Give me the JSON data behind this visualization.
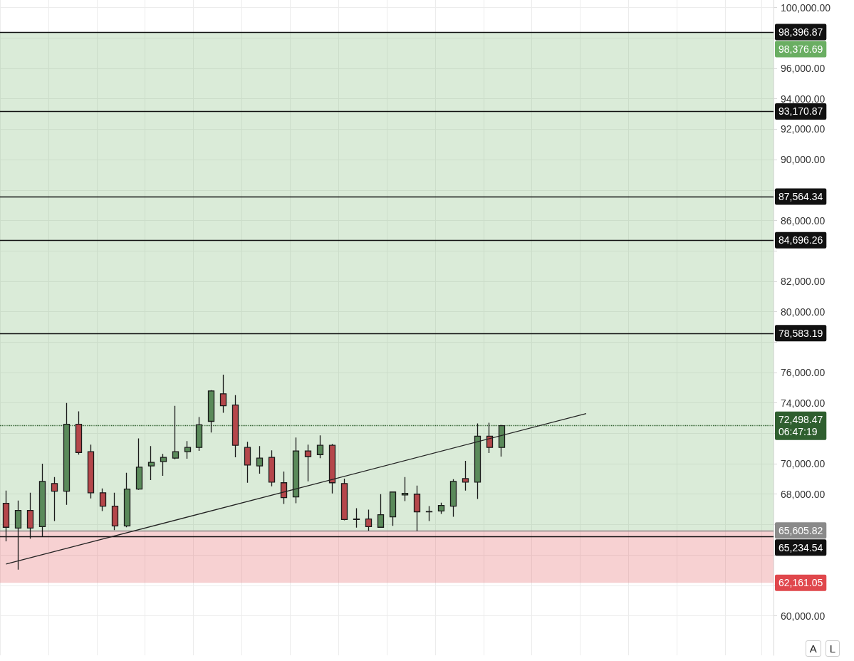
{
  "chart_data": {
    "type": "candlestick",
    "categories": [
      null,
      null,
      null,
      null,
      null,
      null,
      null,
      null,
      null,
      null,
      null,
      null,
      null,
      null,
      null,
      null,
      null,
      null,
      null,
      null,
      null,
      null,
      null,
      null,
      null,
      null,
      null,
      null,
      null,
      null,
      null,
      null,
      null,
      null,
      null,
      null,
      null,
      null,
      null,
      null,
      null,
      null,
      null,
      null,
      null,
      null,
      null,
      null,
      null,
      null,
      null,
      null,
      null,
      null,
      null,
      null,
      null,
      null,
      null,
      null,
      null,
      null,
      null,
      null
    ],
    "ohlc": [
      [
        67400,
        68230,
        64890,
        65820
      ],
      [
        65770,
        67580,
        63030,
        66930
      ],
      [
        66930,
        68090,
        65070,
        65770
      ],
      [
        65860,
        70000,
        65210,
        68840
      ],
      [
        68700,
        69120,
        66230,
        68190
      ],
      [
        68190,
        74000,
        67300,
        72600
      ],
      [
        72600,
        73440,
        70600,
        70740
      ],
      [
        70790,
        71260,
        67720,
        68090
      ],
      [
        68090,
        68370,
        66890,
        67210
      ],
      [
        67210,
        68090,
        65630,
        65910
      ],
      [
        65910,
        69400,
        65820,
        68330
      ],
      [
        68330,
        71670,
        68280,
        69770
      ],
      [
        69860,
        71160,
        68930,
        70090
      ],
      [
        70140,
        70650,
        69210,
        70420
      ],
      [
        70370,
        73810,
        70300,
        70790
      ],
      [
        70790,
        71490,
        70330,
        71070
      ],
      [
        71070,
        73070,
        70840,
        72560
      ],
      [
        72790,
        74840,
        72050,
        74790
      ],
      [
        74600,
        75860,
        73350,
        73810
      ],
      [
        73860,
        74510,
        70420,
        71210
      ],
      [
        71070,
        71440,
        68750,
        69910
      ],
      [
        69860,
        71160,
        69350,
        70370
      ],
      [
        70420,
        70880,
        68510,
        68790
      ],
      [
        68750,
        69490,
        67350,
        67770
      ],
      [
        67820,
        71720,
        67400,
        70840
      ],
      [
        70840,
        71260,
        68840,
        70470
      ],
      [
        70600,
        71860,
        70370,
        71210
      ],
      [
        71210,
        71300,
        68050,
        68750
      ],
      [
        68700,
        69020,
        66280,
        66330
      ],
      [
        66330,
        67070,
        65800,
        66370
      ],
      [
        66370,
        66980,
        65600,
        65860
      ],
      [
        65820,
        68000,
        65820,
        66650
      ],
      [
        66510,
        68180,
        65910,
        68140
      ],
      [
        67950,
        69120,
        67540,
        68050
      ],
      [
        68000,
        68560,
        65580,
        66840
      ],
      [
        66840,
        67210,
        66230,
        66860
      ],
      [
        66890,
        67440,
        66700,
        67260
      ],
      [
        67210,
        68980,
        66510,
        68840
      ],
      [
        69020,
        70190,
        68230,
        68790
      ],
      [
        68790,
        72650,
        67680,
        71810
      ],
      [
        71810,
        72700,
        70700,
        71070
      ],
      [
        71070,
        72550,
        70470,
        72498.47
      ],
      null,
      null,
      null,
      null,
      null,
      null,
      null,
      null,
      null,
      null,
      null,
      null,
      null,
      null,
      null,
      null,
      null,
      null,
      null,
      null,
      null,
      null
    ],
    "colors": [
      "#b5474b",
      "#5a8a5a",
      "#b5474b",
      "#5a8a5a",
      "#b5474b",
      "#5a8a5a",
      "#b5474b",
      "#b5474b",
      "#b5474b",
      "#b5474b",
      "#5a8a5a",
      "#5a8a5a",
      "#5a8a5a",
      "#5a8a5a",
      "#5a8a5a",
      "#5a8a5a",
      "#5a8a5a",
      "#5a8a5a",
      "#b5474b",
      "#b5474b",
      "#b5474b",
      "#5a8a5a",
      "#b5474b",
      "#b5474b",
      "#5a8a5a",
      "#b5474b",
      "#5a8a5a",
      "#b5474b",
      "#b5474b",
      "#5a8a5a",
      "#b5474b",
      "#5a8a5a",
      "#5a8a5a",
      "#5a8a5a",
      "#b5474b",
      "#5a8a5a",
      "#5a8a5a",
      "#5a8a5a",
      "#b5474b",
      "#5a8a5a",
      "#b5474b",
      "#5a8a5a",
      null,
      null,
      null,
      null,
      null,
      null,
      null,
      null,
      null,
      null,
      null,
      null,
      null,
      null,
      null,
      null,
      null,
      null,
      null,
      null,
      null,
      null
    ],
    "series": [
      {
        "type": "line",
        "color": "#222222",
        "values": [
          63400,
          null,
          null,
          null,
          null,
          null,
          null,
          null,
          null,
          null,
          null,
          null,
          null,
          null,
          null,
          null,
          null,
          null,
          null,
          null,
          null,
          null,
          null,
          null,
          null,
          null,
          null,
          null,
          null,
          null,
          null,
          null,
          null,
          null,
          null,
          null,
          null,
          null,
          null,
          null,
          null,
          null,
          null,
          null,
          null,
          null,
          null,
          null,
          73300,
          null,
          null,
          null,
          null,
          null,
          null,
          null,
          null,
          null,
          null,
          null,
          null,
          null,
          null,
          null
        ]
      }
    ],
    "ylim": [
      57400,
      100500
    ],
    "yticks": [
      {
        "value": 60000,
        "label": "60,000.00"
      },
      {
        "value": 62000,
        "label": null
      },
      {
        "value": 64000,
        "label": null
      },
      {
        "value": 66000,
        "label": null
      },
      {
        "value": 68000,
        "label": "68,000.00"
      },
      {
        "value": 70000,
        "label": "70,000.00"
      },
      {
        "value": 72000,
        "label": null
      },
      {
        "value": 74000,
        "label": "74,000.00"
      },
      {
        "value": 76000,
        "label": "76,000.00"
      },
      {
        "value": 78000,
        "label": null
      },
      {
        "value": 80000,
        "label": "80,000.00"
      },
      {
        "value": 82000,
        "label": "82,000.00"
      },
      {
        "value": 84000,
        "label": null
      },
      {
        "value": 86000,
        "label": "86,000.00"
      },
      {
        "value": 88000,
        "label": null
      },
      {
        "value": 90000,
        "label": "90,000.00"
      },
      {
        "value": 92000,
        "label": "92,000.00"
      },
      {
        "value": 94000,
        "label": "94,000.00"
      },
      {
        "value": 96000,
        "label": "96,000.00"
      },
      {
        "value": 98000,
        "label": null
      },
      {
        "value": 100000,
        "label": "100,000.00"
      }
    ],
    "ref_lines": [
      {
        "axis": "y",
        "value": 98396.87,
        "label": "98,396.87",
        "color": "#111111"
      },
      {
        "axis": "y",
        "value": 93170.87,
        "label": "93,170.87",
        "color": "#111111"
      },
      {
        "axis": "y",
        "value": 87564.34,
        "label": "87,564.34",
        "color": "#111111"
      },
      {
        "axis": "y",
        "value": 84696.26,
        "label": "84,696.26",
        "color": "#111111"
      },
      {
        "axis": "y",
        "value": 78583.19,
        "label": "78,583.19",
        "color": "#111111"
      },
      {
        "axis": "y",
        "value": 72498.47,
        "label": "72,498.47\n06:47:19",
        "color": "#2f5f2f",
        "line_style": "dotted"
      },
      {
        "axis": "y",
        "value": 65605.82,
        "label": "65,605.82",
        "color": "#8a8a8a"
      },
      {
        "axis": "y",
        "value": 65234.54,
        "label": "65,234.54",
        "color": "#111111"
      }
    ],
    "bands": [
      {
        "axis": "y",
        "from": 65605.82,
        "to": 98376.69,
        "label": "98,376.69",
        "color": "#6aae62"
      },
      {
        "axis": "y",
        "from": 62161.05,
        "to": 65605.82,
        "label": "62,161.05",
        "color": "#e0474c"
      }
    ],
    "annotations": [
      "A",
      "L"
    ],
    "grid": true
  }
}
